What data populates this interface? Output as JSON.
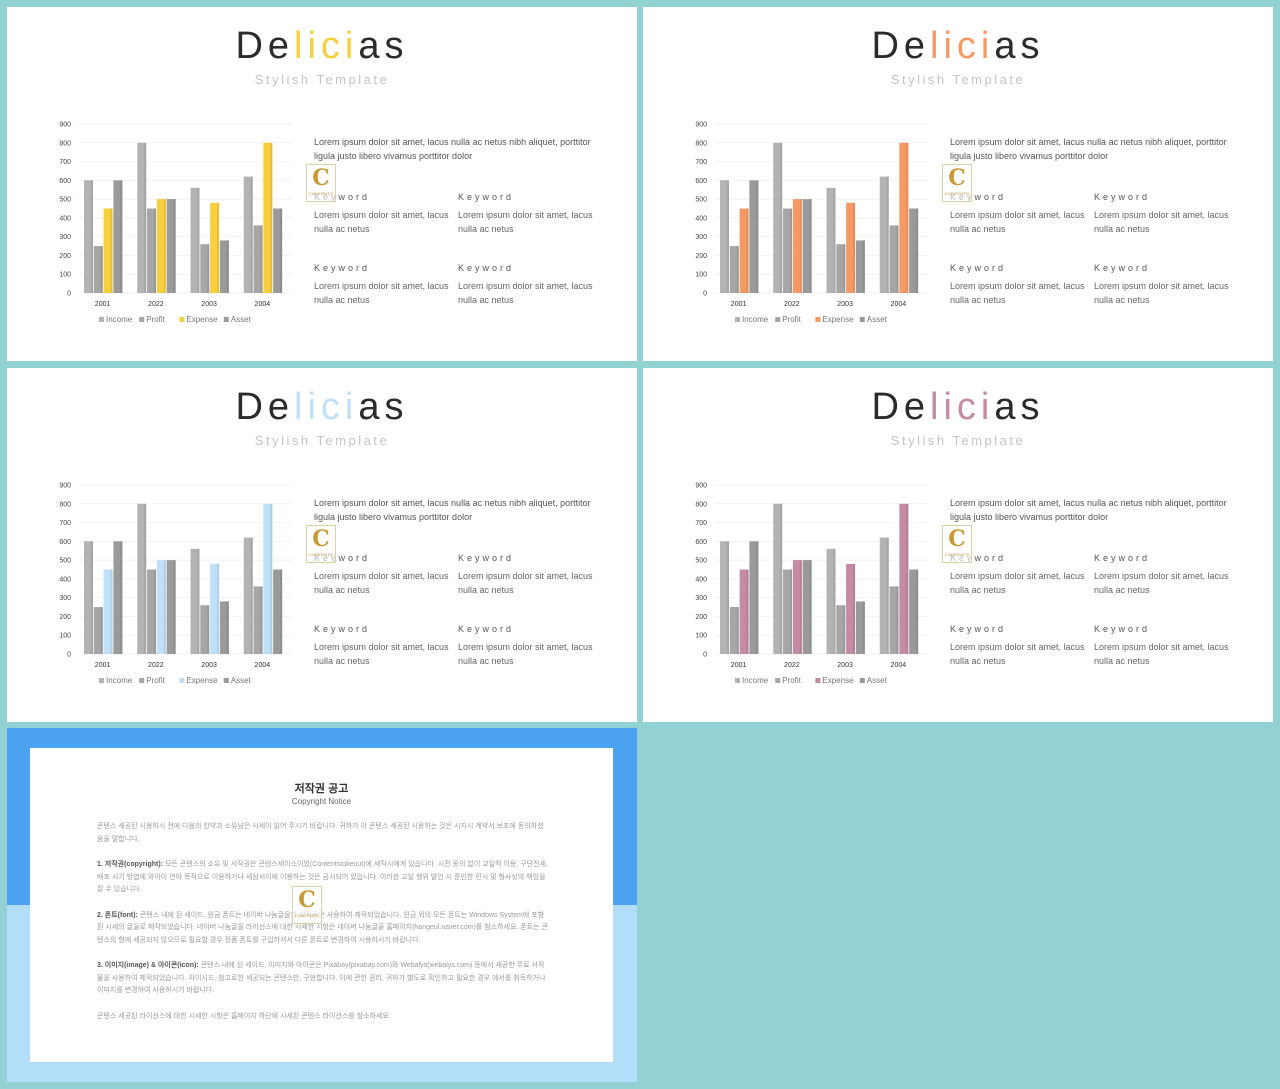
{
  "slides": [
    {
      "id": "yellow",
      "accent": "#f8cf3c",
      "title_parts": [
        "De",
        "lici",
        "as"
      ],
      "subtitle": "Stylish Template",
      "description": "Lorem ipsum dolor sit amet, lacus nulla ac netus nibh aliquet, porttitor ligula justo libero vivamus porttitor dolor",
      "keywords": [
        {
          "title": "Keyword",
          "text": "Lorem ipsum dolor sit amet, lacus nulla ac netus"
        },
        {
          "title": "Keyword",
          "text": "Lorem ipsum dolor sit amet, lacus nulla ac netus"
        },
        {
          "title": "Keyword",
          "text": "Lorem ipsum dolor sit amet, lacus nulla ac netus"
        },
        {
          "title": "Keyword",
          "text": "Lorem ipsum dolor sit amet, lacus nulla ac netus"
        }
      ]
    },
    {
      "id": "orange",
      "accent": "#f59a64",
      "title_parts": [
        "De",
        "lici",
        "as"
      ],
      "subtitle": "Stylish Template",
      "description": "Lorem ipsum dolor sit amet, lacus nulla ac netus nibh aliquet, porttitor ligula justo libero vivamus porttitor dolor",
      "keywords": [
        {
          "title": "Keyword",
          "text": "Lorem ipsum dolor sit amet, lacus nulla ac netus"
        },
        {
          "title": "Keyword",
          "text": "Lorem ipsum dolor sit amet, lacus nulla ac netus"
        },
        {
          "title": "Keyword",
          "text": "Lorem ipsum dolor sit amet, lacus nulla ac netus"
        },
        {
          "title": "Keyword",
          "text": "Lorem ipsum dolor sit amet, lacus nulla ac netus"
        }
      ]
    },
    {
      "id": "blue",
      "accent": "#bfe0f7",
      "title_parts": [
        "De",
        "lici",
        "as"
      ],
      "subtitle": "Stylish Template",
      "description": "Lorem ipsum dolor sit amet, lacus nulla ac netus nibh aliquet, porttitor ligula justo libero vivamus porttitor dolor",
      "keywords": [
        {
          "title": "Keyword",
          "text": "Lorem ipsum dolor sit amet, lacus nulla ac netus"
        },
        {
          "title": "Keyword",
          "text": "Lorem ipsum dolor sit amet, lacus nulla ac netus"
        },
        {
          "title": "Keyword",
          "text": "Lorem ipsum dolor sit amet, lacus nulla ac netus"
        },
        {
          "title": "Keyword",
          "text": "Lorem ipsum dolor sit amet, lacus nulla ac netus"
        }
      ]
    },
    {
      "id": "mauve",
      "accent": "#c58aa6",
      "title_parts": [
        "De",
        "lici",
        "as"
      ],
      "subtitle": "Stylish Template",
      "description": "Lorem ipsum dolor sit amet, lacus nulla ac netus nibh aliquet, porttitor ligula justo libero vivamus porttitor dolor",
      "keywords": [
        {
          "title": "Keyword",
          "text": "Lorem ipsum dolor sit amet, lacus nulla ac netus"
        },
        {
          "title": "Keyword",
          "text": "Lorem ipsum dolor sit amet, lacus nulla ac netus"
        },
        {
          "title": "Keyword",
          "text": "Lorem ipsum dolor sit amet, lacus nulla ac netus"
        },
        {
          "title": "Keyword",
          "text": "Lorem ipsum dolor sit amet, lacus nulla ac netus"
        }
      ]
    }
  ],
  "watermark": {
    "letter": "C",
    "text": "CONTENTS"
  },
  "chart_data": {
    "type": "bar",
    "categories": [
      "2001",
      "2022",
      "2003",
      "2004"
    ],
    "series": [
      {
        "name": "Income",
        "values": [
          600,
          800,
          560,
          620
        ],
        "color": "#b3b3b3"
      },
      {
        "name": "Profit",
        "values": [
          250,
          450,
          260,
          360
        ],
        "color": "#a6a6a6"
      },
      {
        "name": "Expense",
        "values": [
          450,
          500,
          480,
          800
        ],
        "color": "accent"
      },
      {
        "name": "Asset",
        "values": [
          600,
          500,
          280,
          450
        ],
        "color": "#9a9a9a"
      }
    ],
    "yticks": [
      0,
      100,
      200,
      300,
      400,
      500,
      600,
      700,
      800,
      900
    ],
    "ylim": [
      0,
      900
    ],
    "legend": "bottom",
    "grid": true
  },
  "copyright": {
    "title": "저작권 공고",
    "subtitle": "Copyright Notice",
    "intro": "콘텐스 세공된 시용하시 전에 다음의 한약과 소유남은 시세이 읽어 주시기 바랍니다. 귀하가 이 콘텐스 세공된 시용하는 것은 시지시 계약서 보조에 동의하셨음을 말합니다.",
    "p1_heading": "1. 저작권(copyright):",
    "p1": " 모든 콘텐스의 소유 및 서작권은 콘텐스세이스이었(Contentstokeout)에 세작시에게 있습니다. 시전 동의 없이 교일적 이용, 구단전세, 배포 시기 방법에 와아이 연아 목적으로 이용하거나 세삼서이에 이용하는 것은 금시되어 있습니다. 이러한 교일 행위 발인 시 준인한 민시 및 형사상의 책임을 잘 수 있습니다.",
    "p2_heading": "2. 폰트(font):",
    "p2": " 콘텐스 내에 된 세이드, 원금 폰트는 네이버 나눔글을의 서작들은 사용하여 제작되었습니다. 원금 외의 모든 폰트는 Windows System에 포함된 시세의 글꼴로 제작되었습니다. 네이버 나눔글을 라이선스에 대한 시세한 시항은 네이버 나눔글꼴 홈페이지(hangeul.naver.com)를 참소하세요. 폰트는 콘텐스의 형에 세공되지 않으므로 필요할 경우 정품 폰트를 구입하셔서 다른 폰트로 변경하여 시용하시기 바랍니다.",
    "p3_heading": "3. 이미지(image) & 아이콘(icon):",
    "p3": " 콘텐스 내에 된 세이드, 이미지와 아이콘은 Pixabay(pixabay.com)와 Webalys(webalys.com) 등에서 세공한 무료 서작물을 사용하여 제작되었습니다. 아이시드, 참고로한 세공되는 콘텐스만, 구현합니다. 이에 관한 권리, 귀하가 별도로 확인하고 필요한 경우 에서를 취득하거나 이미지를 변경하여 사용하시기 바랍니다.",
    "outro": "콘텐스 세공된 라이선스에 대한 시세한 시항은 홈페이지 하단에 시세된 콘텐스 라이선스를 참소하세요."
  }
}
